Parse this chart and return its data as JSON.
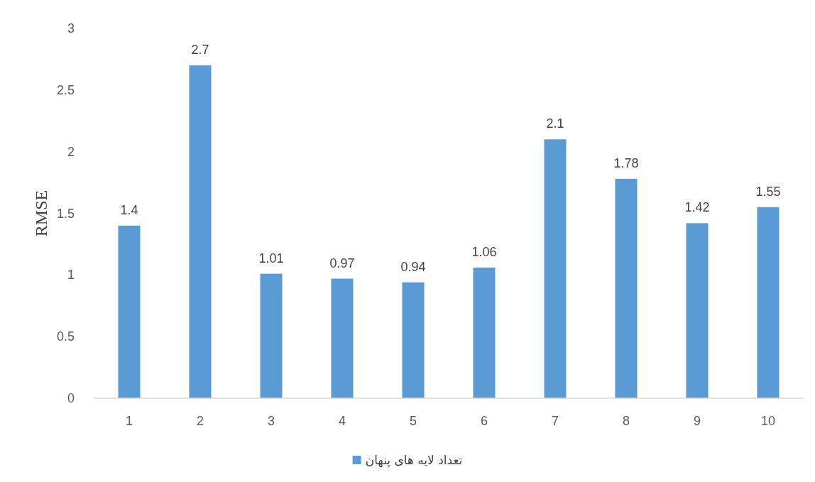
{
  "chart_data": {
    "type": "bar",
    "ylabel": "RMSE",
    "categories": [
      "1",
      "2",
      "3",
      "4",
      "5",
      "6",
      "7",
      "8",
      "9",
      "10"
    ],
    "series": [
      {
        "name": "تعداد لایه های پنهان",
        "color": "#5b9bd5",
        "values": [
          1.4,
          2.7,
          1.01,
          0.97,
          0.94,
          1.06,
          2.1,
          1.78,
          1.42,
          1.55
        ]
      }
    ],
    "ylim": [
      0,
      3
    ],
    "yticks": [
      0,
      0.5,
      1,
      1.5,
      2,
      2.5,
      3
    ],
    "data_labels": true,
    "grid": false,
    "legend": "bottom"
  }
}
